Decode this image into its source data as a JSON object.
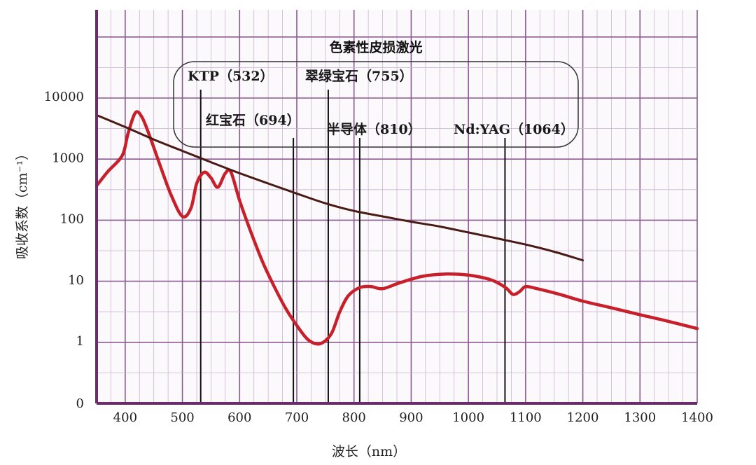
{
  "chart_data": {
    "type": "line",
    "xlabel": "波长（nm）",
    "ylabel": "吸收系数（cm⁻¹）",
    "xlim": [
      350,
      1400
    ],
    "x_ticks": [
      400,
      500,
      600,
      700,
      800,
      900,
      1000,
      1100,
      1200,
      1300,
      1400
    ],
    "y_scale": "log",
    "y_ticks": [
      {
        "value": 0,
        "label": "0"
      },
      {
        "value": 1,
        "label": "1"
      },
      {
        "value": 10,
        "label": "10"
      },
      {
        "value": 100,
        "label": "100"
      },
      {
        "value": 1000,
        "label": "1000"
      },
      {
        "value": 10000,
        "label": "10000"
      }
    ],
    "grid": true,
    "box_title": "色素性皮损激光",
    "series": [
      {
        "color": "#c8202a",
        "points": [
          [
            350,
            350
          ],
          [
            370,
            600
          ],
          [
            395,
            1100
          ],
          [
            405,
            2500
          ],
          [
            418,
            5500
          ],
          [
            430,
            4500
          ],
          [
            445,
            2000
          ],
          [
            460,
            800
          ],
          [
            480,
            250
          ],
          [
            500,
            110
          ],
          [
            515,
            150
          ],
          [
            525,
            380
          ],
          [
            538,
            580
          ],
          [
            550,
            470
          ],
          [
            562,
            330
          ],
          [
            575,
            560
          ],
          [
            585,
            580
          ],
          [
            600,
            200
          ],
          [
            620,
            60
          ],
          [
            640,
            20
          ],
          [
            660,
            8
          ],
          [
            680,
            3.5
          ],
          [
            700,
            1.8
          ],
          [
            720,
            1.05
          ],
          [
            740,
            0.9
          ],
          [
            760,
            1.3
          ],
          [
            775,
            3
          ],
          [
            790,
            5.5
          ],
          [
            810,
            7.5
          ],
          [
            830,
            7.8
          ],
          [
            850,
            7.2
          ],
          [
            880,
            9
          ],
          [
            920,
            11.5
          ],
          [
            960,
            12.5
          ],
          [
            1000,
            12
          ],
          [
            1040,
            10
          ],
          [
            1065,
            7.5
          ],
          [
            1078,
            5.8
          ],
          [
            1090,
            6.5
          ],
          [
            1100,
            7.8
          ],
          [
            1120,
            7.2
          ],
          [
            1160,
            5.8
          ],
          [
            1200,
            4.5
          ],
          [
            1250,
            3.5
          ],
          [
            1300,
            2.7
          ],
          [
            1350,
            2.1
          ],
          [
            1400,
            1.6
          ]
        ]
      },
      {
        "color": "#4a1a14",
        "points": [
          [
            350,
            5000
          ],
          [
            400,
            3200
          ],
          [
            450,
            2000
          ],
          [
            500,
            1300
          ],
          [
            550,
            850
          ],
          [
            600,
            560
          ],
          [
            650,
            380
          ],
          [
            700,
            260
          ],
          [
            750,
            180
          ],
          [
            800,
            135
          ],
          [
            850,
            110
          ],
          [
            900,
            90
          ],
          [
            950,
            75
          ],
          [
            1000,
            60
          ],
          [
            1050,
            48
          ],
          [
            1100,
            38
          ],
          [
            1150,
            29
          ],
          [
            1200,
            21
          ]
        ]
      }
    ],
    "laser_lines": [
      {
        "label": "KTP（532）",
        "wavelength": 532
      },
      {
        "label": "红宝石（694）",
        "wavelength": 694
      },
      {
        "label": "翠绿宝石（755）",
        "wavelength": 755
      },
      {
        "label": "半导体（810）",
        "wavelength": 810
      },
      {
        "label": "Nd:YAG（1064）",
        "wavelength": 1064
      }
    ]
  }
}
